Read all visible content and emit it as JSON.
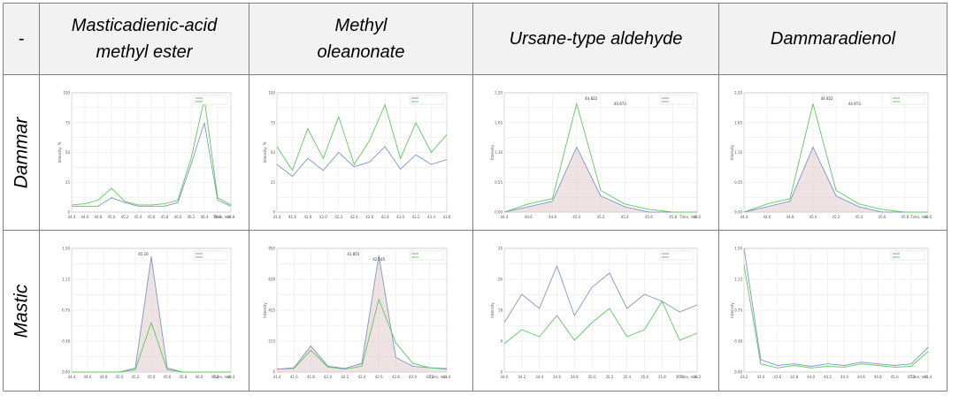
{
  "table": {
    "corner": "-",
    "columns": [
      {
        "line1": "Masticadienic-acid",
        "line2": "methyl ester"
      },
      {
        "line1": "Methyl",
        "line2": "oleanonate"
      },
      {
        "line1": "Ursane-type aldehyde",
        "line2": ""
      },
      {
        "line1": "Dammaradienol",
        "line2": ""
      }
    ],
    "rows": [
      "Dammar",
      "Mastic"
    ]
  },
  "colors": {
    "border": "#7f7f7f",
    "header_bg": "#f2f2f2",
    "series_blue": "#7f96c8",
    "series_green": "#5cc85c",
    "peak_fill": "#e2cfcf"
  },
  "chart_data": [
    {
      "panel": "Dammar / Masticadienic-acid methyl ester",
      "type": "line",
      "xlabel": "Time, min",
      "ylabel": "Intensity, %",
      "title": "",
      "x": [
        44.4,
        44.6,
        44.8,
        45.0,
        45.2,
        45.4,
        45.6,
        45.8,
        46.0,
        46.2,
        46.4,
        46.6,
        46.8
      ],
      "series": [
        {
          "color": "#7f96c8",
          "values": [
            5,
            5,
            5,
            12,
            8,
            5,
            5,
            5,
            8,
            40,
            75,
            10,
            5
          ]
        },
        {
          "color": "#5cc85c",
          "values": [
            6,
            7,
            10,
            20,
            9,
            6,
            6,
            7,
            10,
            45,
            95,
            12,
            6
          ]
        }
      ],
      "ylim": [
        0,
        100
      ]
    },
    {
      "panel": "Dammar / Methyl oleanonate",
      "type": "line",
      "xlabel": "",
      "ylabel": "Intensity, %",
      "title": "",
      "x": [
        41.4,
        41.6,
        41.8,
        42.0,
        42.2,
        42.4,
        42.6,
        42.8,
        43.0,
        43.2,
        43.4,
        43.6
      ],
      "series": [
        {
          "color": "#7f96c8",
          "values": [
            40,
            30,
            45,
            35,
            50,
            38,
            42,
            55,
            36,
            48,
            40,
            44
          ]
        },
        {
          "color": "#5cc85c",
          "values": [
            55,
            35,
            70,
            45,
            80,
            40,
            60,
            90,
            45,
            75,
            50,
            65
          ]
        }
      ],
      "ylim": [
        0,
        100
      ]
    },
    {
      "panel": "Dammar / Ursane-type aldehyde",
      "type": "line",
      "xlabel": "Time, min",
      "ylabel": "Intensity",
      "title": "",
      "x": [
        44.4,
        44.6,
        44.8,
        45.0,
        45.2,
        45.4,
        45.6,
        45.8,
        46.0
      ],
      "series": [
        {
          "color": "#7f96c8",
          "values": [
            0,
            0.1,
            0.2,
            1.2,
            0.3,
            0.1,
            0,
            0,
            0
          ]
        },
        {
          "color": "#5cc85c",
          "values": [
            0,
            0.15,
            0.25,
            2.0,
            0.4,
            0.15,
            0.05,
            0,
            0
          ]
        }
      ],
      "ylim": [
        0,
        2.2
      ],
      "annotations": [
        "44.822",
        "44.973"
      ]
    },
    {
      "panel": "Dammar / Dammaradienol",
      "type": "line",
      "xlabel": "Time, min",
      "ylabel": "Intensity",
      "title": "",
      "x": [
        44.4,
        44.6,
        44.8,
        45.0,
        45.2,
        45.4,
        45.6,
        45.8,
        46.0
      ],
      "series": [
        {
          "color": "#7f96c8",
          "values": [
            0,
            0.1,
            0.2,
            1.2,
            0.3,
            0.1,
            0,
            0,
            0
          ]
        },
        {
          "color": "#5cc85c",
          "values": [
            0,
            0.15,
            0.25,
            2.0,
            0.4,
            0.15,
            0.05,
            0,
            0
          ]
        }
      ],
      "ylim": [
        0,
        2.2
      ],
      "annotations": [
        "44.822",
        "44.973"
      ]
    },
    {
      "panel": "Mastic / Masticadienic-acid methyl ester",
      "type": "line",
      "xlabel": "Time, min",
      "ylabel": "",
      "title": "",
      "x": [
        44.4,
        44.6,
        44.8,
        45.0,
        45.2,
        45.4,
        45.6,
        45.8,
        46.0,
        46.2,
        46.4
      ],
      "series": [
        {
          "color": "#7f96c8",
          "values": [
            0,
            0,
            0,
            0,
            0.05,
            1.4,
            0.05,
            0,
            0,
            0,
            0
          ]
        },
        {
          "color": "#5cc85c",
          "values": [
            0,
            0,
            0,
            0,
            0.03,
            0.6,
            0.03,
            0,
            0,
            0,
            0
          ]
        }
      ],
      "ylim": [
        0,
        1.5
      ],
      "annotations": [
        "45.16"
      ]
    },
    {
      "panel": "Mastic / Methyl oleanonate",
      "type": "line",
      "xlabel": "Time, min",
      "ylabel": "Intensity",
      "title": "",
      "x": [
        41.4,
        41.6,
        41.8,
        42.0,
        42.2,
        42.4,
        42.6,
        42.8,
        43.0,
        43.2,
        43.4
      ],
      "series": [
        {
          "color": "#7f96c8",
          "values": [
            20,
            30,
            180,
            40,
            25,
            60,
            800,
            100,
            40,
            30,
            25
          ]
        },
        {
          "color": "#5cc85c",
          "values": [
            20,
            25,
            150,
            35,
            20,
            40,
            500,
            200,
            60,
            30,
            20
          ]
        }
      ],
      "ylim": [
        0,
        850
      ],
      "annotations": [
        "41.855",
        "42.545"
      ]
    },
    {
      "panel": "Mastic / Ursane-type aldehyde",
      "type": "line",
      "xlabel": "Time, min",
      "ylabel": "Intensity",
      "title": "",
      "x": [
        34.0,
        34.2,
        34.4,
        34.6,
        34.8,
        35.0,
        35.2,
        35.4,
        35.6,
        35.8,
        36.0,
        36.2
      ],
      "series": [
        {
          "color": "#7f96c8",
          "values": [
            14,
            22,
            18,
            30,
            16,
            24,
            28,
            18,
            22,
            20,
            17,
            19
          ]
        },
        {
          "color": "#5cc85c",
          "values": [
            8,
            12,
            10,
            16,
            9,
            14,
            18,
            10,
            12,
            20,
            9,
            11
          ]
        }
      ],
      "ylim": [
        0,
        35
      ]
    },
    {
      "panel": "Mastic / Dammaradienol",
      "type": "line",
      "xlabel": "Time, min",
      "ylabel": "Intensity",
      "title": "",
      "x": [
        43.2,
        43.4,
        43.6,
        43.8,
        44.0,
        44.2,
        44.4,
        44.6,
        44.8,
        45.0,
        45.2,
        45.4
      ],
      "series": [
        {
          "color": "#7f96c8",
          "values": [
            1.5,
            0.15,
            0.08,
            0.1,
            0.07,
            0.1,
            0.08,
            0.12,
            0.1,
            0.08,
            0.1,
            0.3
          ]
        },
        {
          "color": "#5cc85c",
          "values": [
            1.3,
            0.1,
            0.05,
            0.08,
            0.05,
            0.07,
            0.06,
            0.1,
            0.08,
            0.06,
            0.07,
            0.25
          ]
        }
      ],
      "ylim": [
        0,
        1.5
      ]
    }
  ]
}
